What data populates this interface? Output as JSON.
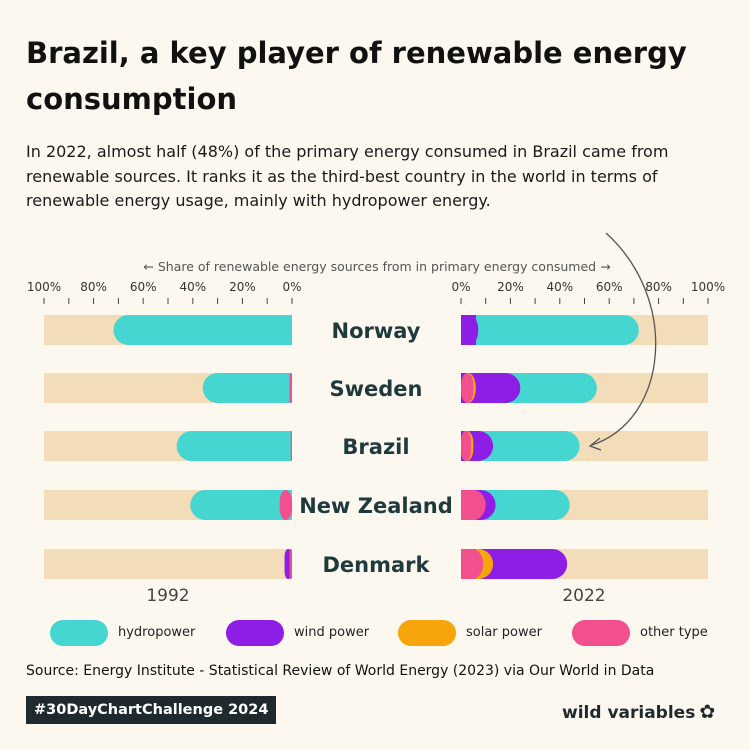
{
  "title": "Brazil, a key player of renewable energy consumption",
  "subtitle": "In 2022, almost half (48%) of the primary energy consumed in Brazil came from renewable sources. It ranks it as the third-best country in the world in terms of renewable energy usage, mainly with hydropower energy.",
  "chart_data": {
    "type": "bar",
    "subtype": "mirrored stacked horizontal bar",
    "axis_title": "← Share of renewable energy sources from in primary energy consumed →",
    "left_ticks": [
      "100%",
      "80%",
      "60%",
      "40%",
      "20%",
      "0%"
    ],
    "right_ticks": [
      "0%",
      "20%",
      "40%",
      "60%",
      "80%",
      "100%"
    ],
    "xlim": [
      0,
      100
    ],
    "left_year": "1992",
    "right_year": "2022",
    "categories": [
      "Norway",
      "Sweden",
      "Brazil",
      "New Zealand",
      "Denmark"
    ],
    "series_order": [
      "other type",
      "solar power",
      "wind power",
      "hydropower"
    ],
    "series_1992": [
      {
        "name": "hydropower",
        "values": [
          72,
          35,
          46,
          36,
          0
        ]
      },
      {
        "name": "wind power",
        "values": [
          0,
          0,
          0,
          0,
          2
        ]
      },
      {
        "name": "solar power",
        "values": [
          0,
          0,
          0,
          0,
          0
        ]
      },
      {
        "name": "other type",
        "values": [
          0,
          1,
          0.5,
          5,
          1
        ]
      }
    ],
    "series_2022": [
      {
        "name": "hydropower",
        "values": [
          65,
          31,
          35,
          30,
          0
        ]
      },
      {
        "name": "wind power",
        "values": [
          7,
          18,
          8,
          4,
          30
        ]
      },
      {
        "name": "solar power",
        "values": [
          0,
          1,
          1,
          0,
          4
        ]
      },
      {
        "name": "other type",
        "values": [
          0,
          5,
          4,
          10,
          9
        ]
      }
    ],
    "colors": {
      "hydropower": "#45d6d2",
      "wind power": "#8e1ee6",
      "solar power": "#f7a50b",
      "other type": "#f24f8e",
      "track": "#f2ddb8"
    },
    "annotation": "arrow from text highlighting Brazil 2022 bar"
  },
  "legend": [
    {
      "label": "hydropower",
      "color": "#45d6d2"
    },
    {
      "label": "wind power",
      "color": "#8e1ee6"
    },
    {
      "label": "solar power",
      "color": "#f7a50b"
    },
    {
      "label": "other type",
      "color": "#f24f8e"
    }
  ],
  "source": "Source: Energy Institute - Statistical Review of World Energy (2023) via Our World in Data",
  "hashtag": "#30DayChartChallenge 2024",
  "brand": "wild variables",
  "brand_icon": "✿"
}
